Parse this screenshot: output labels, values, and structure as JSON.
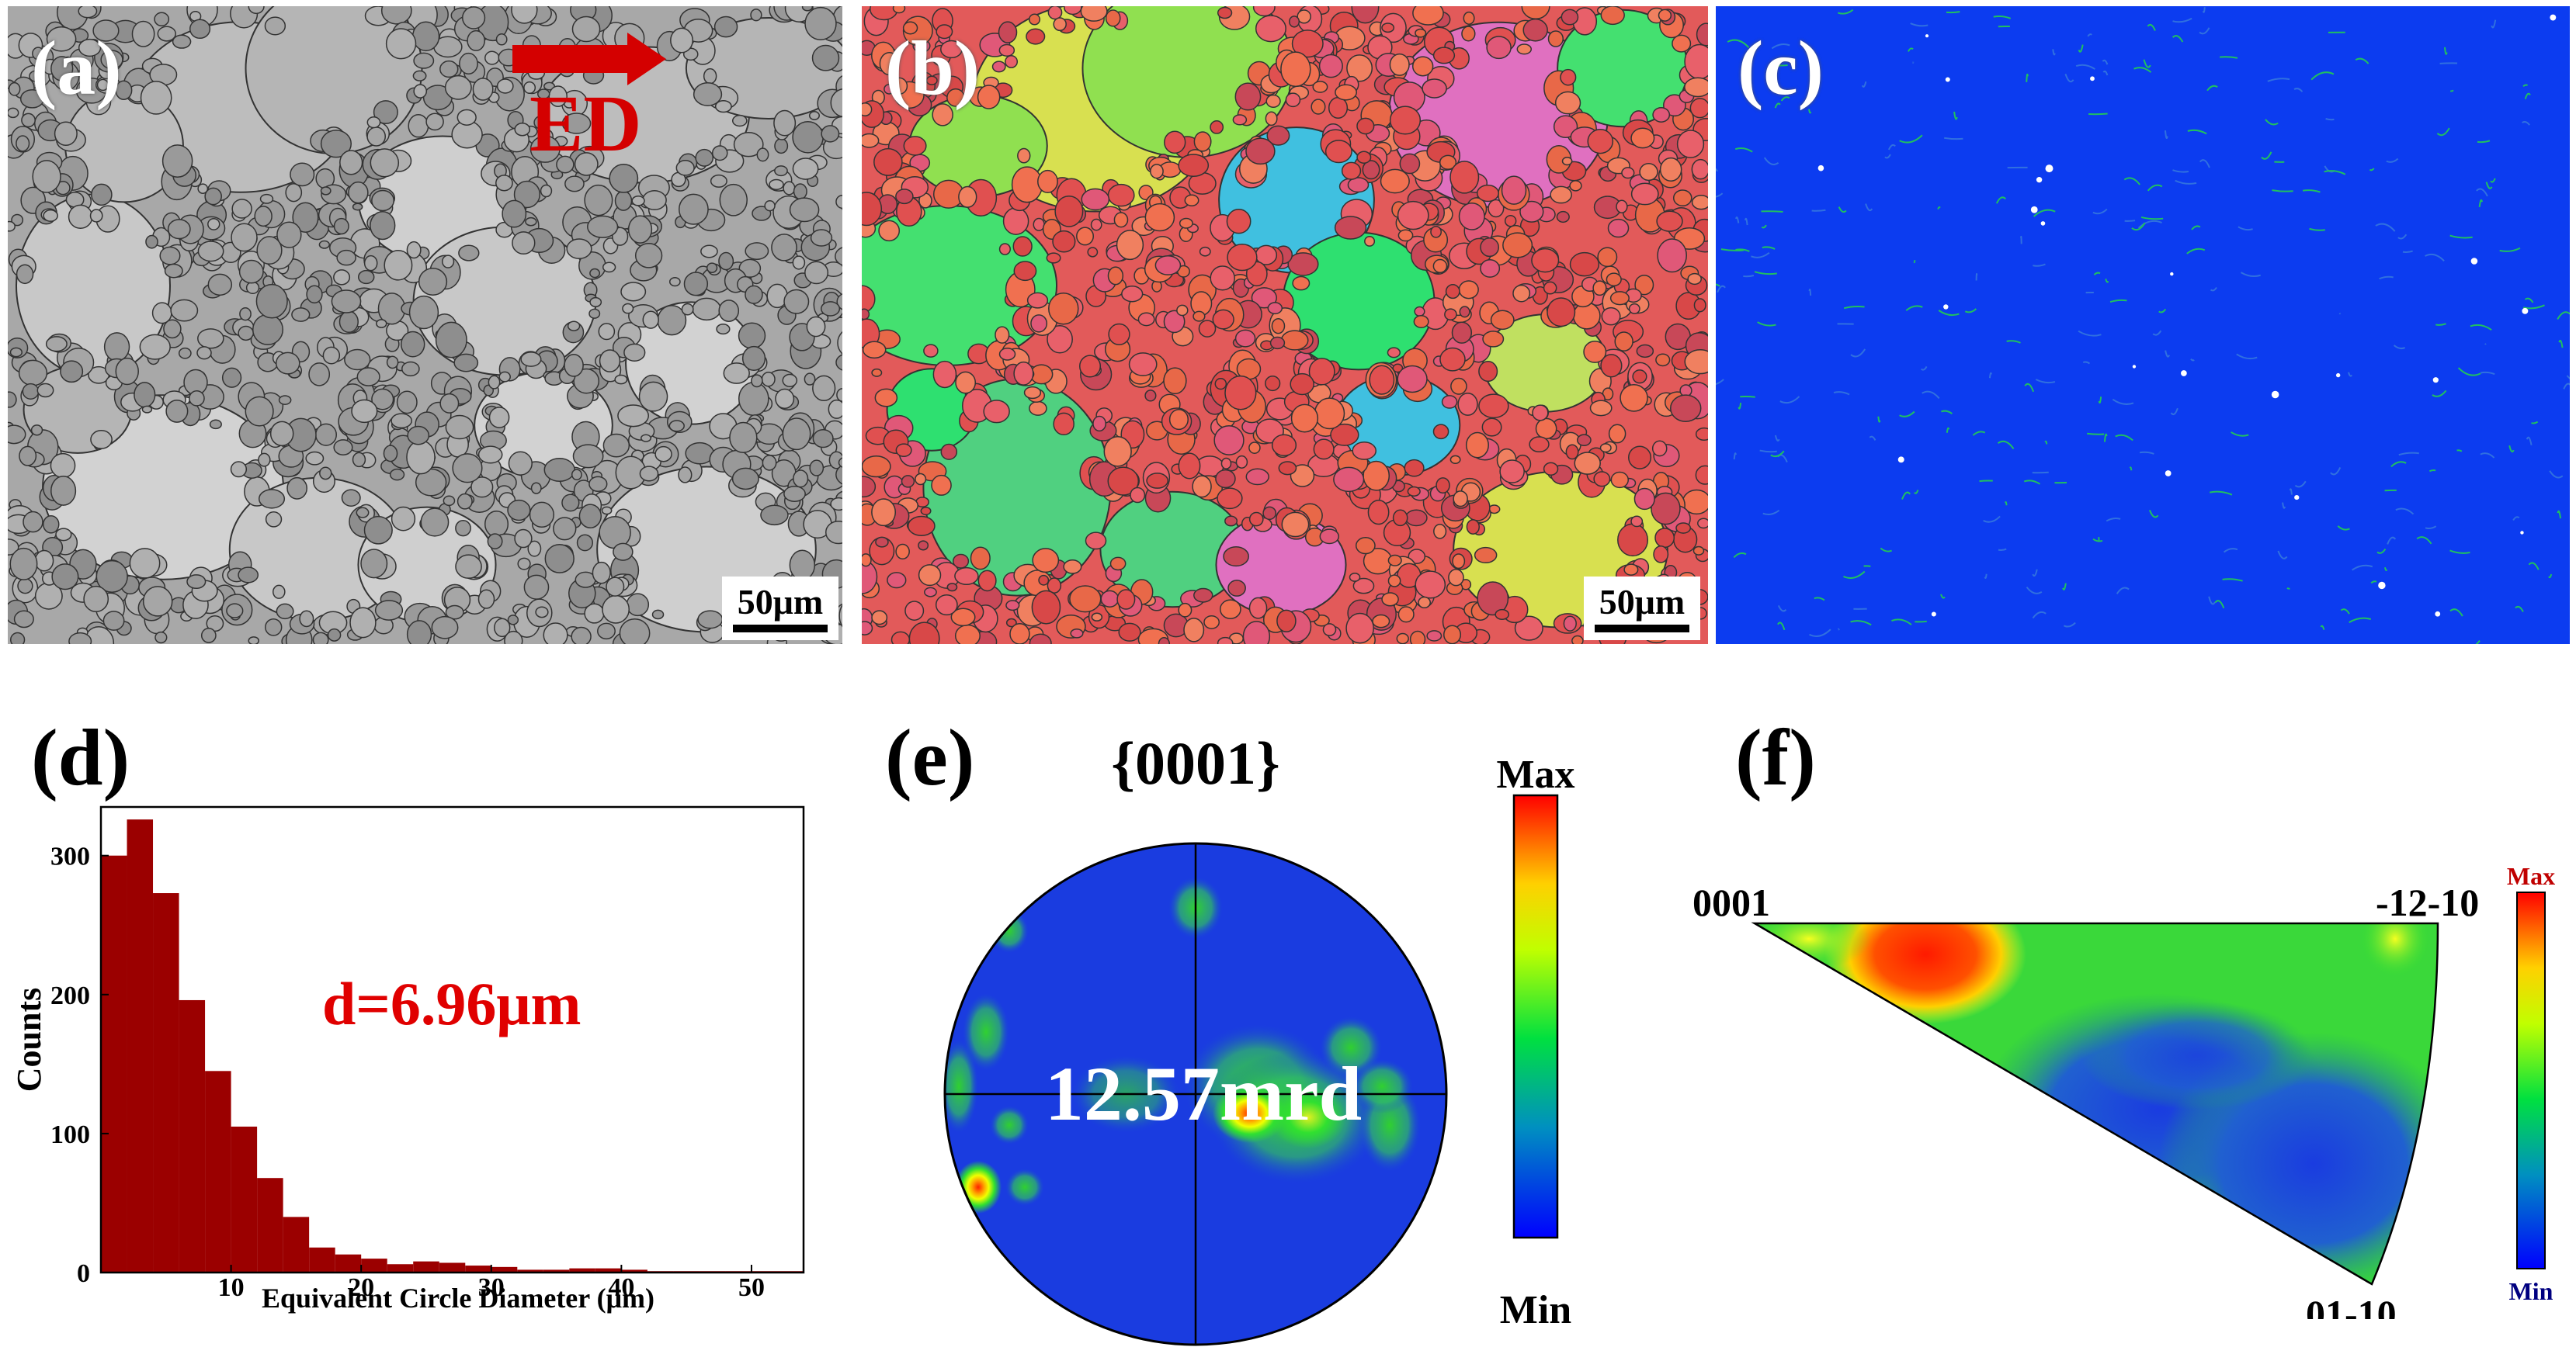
{
  "panels": {
    "a": {
      "label": "(a)",
      "ed_label": "ED",
      "scale_bar": "50μm"
    },
    "b": {
      "label": "(b)",
      "scale_bar": "50μm"
    },
    "c": {
      "label": "(c)"
    },
    "d": {
      "label": "(d)"
    },
    "e": {
      "label": "(e)",
      "pole_figure_title": "{0001}",
      "max_intensity_text": "12.57mrd",
      "colorbar": {
        "max_label": "Max",
        "min_label": "Min"
      }
    },
    "f": {
      "label": "(f)",
      "corner_0001": "0001",
      "corner_1210": "-12-10",
      "corner_0110": "01-10",
      "colorbar": {
        "max_label": "Max",
        "min_label": "Min"
      }
    }
  },
  "colors": {
    "bar_fill": "#9b0000",
    "annotation_red": "#e00000",
    "ebsd_blue": "#0c3cf0",
    "ed_arrow": "#d40000"
  },
  "chart_data": {
    "type": "bar",
    "xlabel": "Equivalent Circle Diameter (μm)",
    "ylabel": "Counts",
    "annotation": "d=6.96μm",
    "xlim": [
      0,
      54
    ],
    "ylim": [
      0,
      335
    ],
    "xticks": [
      10,
      20,
      30,
      40,
      50
    ],
    "yticks": [
      0,
      100,
      200,
      300
    ],
    "bin_width": 2,
    "bin_starts": [
      0,
      2,
      4,
      6,
      8,
      10,
      12,
      14,
      16,
      18,
      20,
      22,
      24,
      26,
      28,
      30,
      32,
      34,
      36,
      38,
      40,
      42,
      44,
      46,
      48,
      50,
      52
    ],
    "values": [
      300,
      326,
      273,
      196,
      145,
      105,
      68,
      40,
      18,
      13,
      10,
      6,
      8,
      7,
      5,
      4,
      2,
      2,
      3,
      3,
      2,
      1,
      1,
      1,
      1,
      1,
      1
    ]
  }
}
